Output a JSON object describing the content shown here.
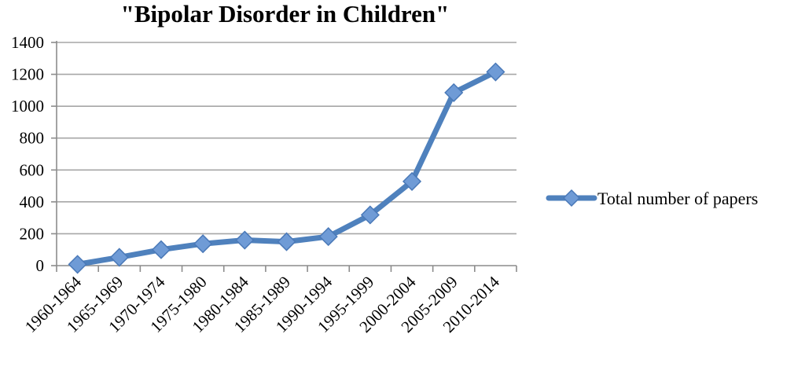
{
  "chart_data": {
    "type": "line",
    "title": "\"Bipolar Disorder in Children\"",
    "xlabel": "",
    "ylabel": "",
    "categories": [
      "1960-1964",
      "1965-1969",
      "1970-1974",
      "1975-1980",
      "1980-1984",
      "1985-1989",
      "1990-1994",
      "1995-1999",
      "2000-2004",
      "2005-2009",
      "2010-2014"
    ],
    "series": [
      {
        "name": "Total number of papers",
        "values": [
          8,
          52,
          100,
          137,
          160,
          150,
          182,
          318,
          528,
          1085,
          1215
        ],
        "color": "#4f81bd"
      }
    ],
    "ylim": [
      0,
      1400
    ],
    "yticks": [
      0,
      200,
      400,
      600,
      800,
      1000,
      1200,
      1400
    ],
    "grid": true,
    "legend": "right",
    "marker": "diamond"
  }
}
